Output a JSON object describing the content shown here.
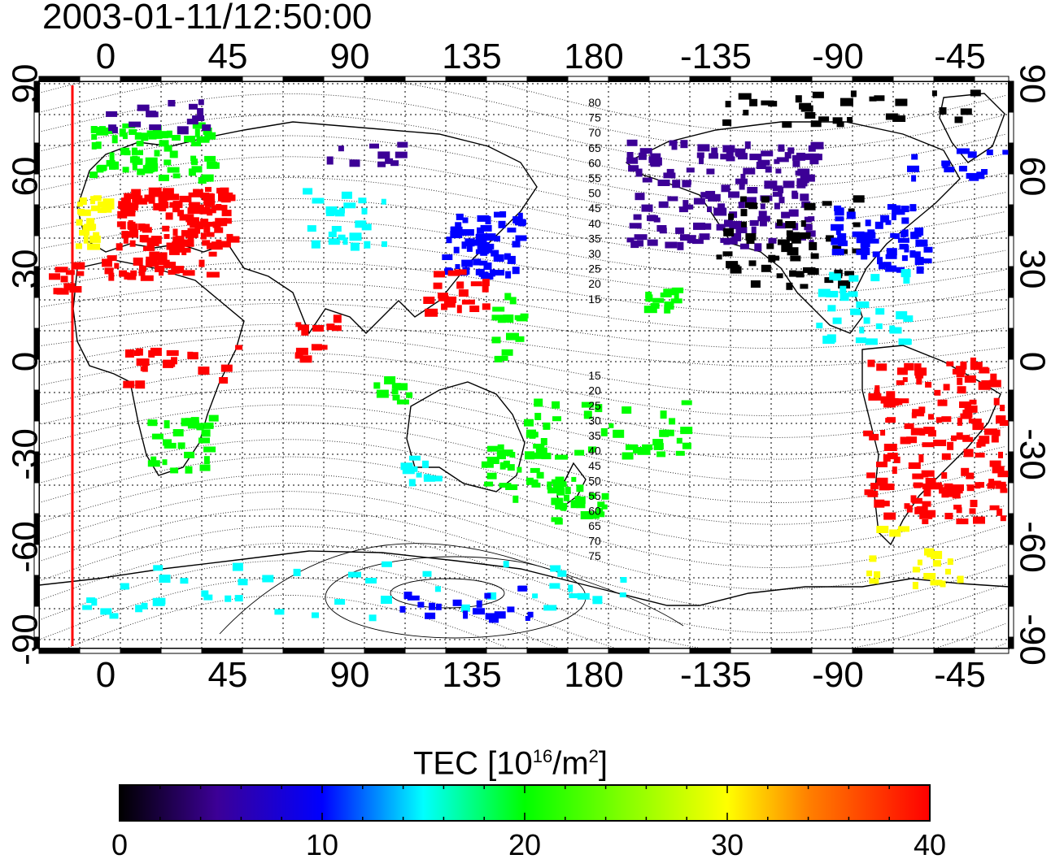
{
  "title": "2003-01-11/12:50:00",
  "lon_labels": [
    "0",
    "45",
    "90",
    "135",
    "180",
    "-135",
    "-90",
    "-45"
  ],
  "lat_labels": [
    "90",
    "60",
    "30",
    "0",
    "-30",
    "-60",
    "-90"
  ],
  "contour_labels_north": [
    "80",
    "75",
    "70",
    "65",
    "60",
    "55",
    "50",
    "45",
    "40",
    "35",
    "30",
    "25",
    "20",
    "15"
  ],
  "contour_labels_south": [
    "15",
    "20",
    "25",
    "30",
    "35",
    "40",
    "45",
    "50",
    "55",
    "60",
    "65",
    "70",
    "75"
  ],
  "colorbar": {
    "label_main": "TEC  [10",
    "label_exp1": "16",
    "label_mid": "/m",
    "label_exp2": "2",
    "label_end": "]",
    "ticks": [
      "0",
      "10",
      "20",
      "30",
      "40"
    ],
    "range": [
      0,
      40
    ]
  },
  "colors": {
    "tec_0": "#000000",
    "tec_5": "#3c0096",
    "tec_10": "#0000ff",
    "tec_15": "#00ffff",
    "tec_20": "#00ff00",
    "tec_30": "#ffff00",
    "tec_40": "#ff0000",
    "terminator": "#ff0000"
  }
}
